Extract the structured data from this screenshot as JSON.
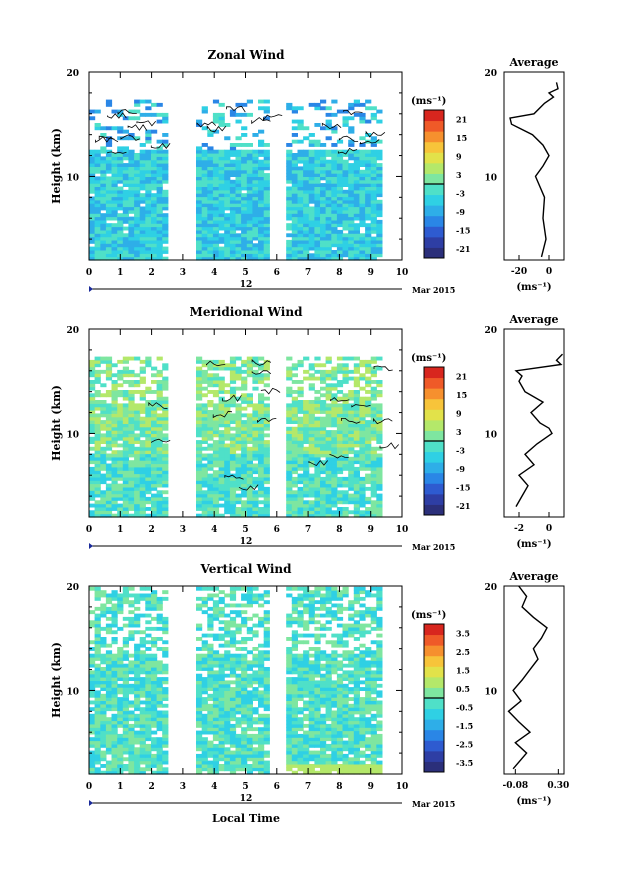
{
  "panels": [
    {
      "title": "Zonal Wind",
      "ylabel": "Height (km)",
      "y_ticks": [
        "20",
        "10"
      ],
      "x_ticks": [
        "0",
        "1",
        "2",
        "3",
        "4",
        "5",
        "6",
        "7",
        "8",
        "9",
        "10"
      ],
      "date_day": "12",
      "date_label": "Mar 2015",
      "unit": "(ms⁻¹)",
      "colorbar_ticks": [
        "21",
        "15",
        "9",
        "3",
        "-3",
        "-9",
        "-15",
        "-21"
      ],
      "avg_title": "Average",
      "avg_x_ticks": [
        "-20",
        "0"
      ],
      "avg_unit": "(ms⁻¹)"
    },
    {
      "title": "Meridional Wind",
      "ylabel": "Height (km)",
      "y_ticks": [
        "20",
        "10"
      ],
      "x_ticks": [
        "0",
        "1",
        "2",
        "3",
        "4",
        "5",
        "6",
        "7",
        "8",
        "9",
        "10"
      ],
      "date_day": "12",
      "date_label": "Mar 2015",
      "unit": "(ms⁻¹)",
      "colorbar_ticks": [
        "21",
        "15",
        "9",
        "3",
        "-3",
        "-9",
        "-15",
        "-21"
      ],
      "avg_title": "Average",
      "avg_x_ticks": [
        "-2",
        "0"
      ],
      "avg_unit": "(ms⁻¹)"
    },
    {
      "title": "Vertical Wind",
      "ylabel": "Height (km)",
      "y_ticks": [
        "20",
        "10"
      ],
      "x_ticks": [
        "0",
        "1",
        "2",
        "3",
        "4",
        "5",
        "6",
        "7",
        "8",
        "9",
        "10"
      ],
      "date_day": "12",
      "date_label": "Mar 2015",
      "unit": "(ms⁻¹)",
      "colorbar_ticks": [
        "3.5",
        "2.5",
        "1.5",
        "0.5",
        "-0.5",
        "-1.5",
        "-2.5",
        "-3.5"
      ],
      "avg_title": "Average",
      "avg_x_ticks": [
        "-0.08",
        "0.30"
      ],
      "avg_unit": "(ms⁻¹)"
    }
  ],
  "xlabel": "Local Time",
  "chart_data": [
    {
      "type": "heatmap",
      "title": "Zonal Wind",
      "xlabel": "Local Time",
      "ylabel": "Height (km)",
      "xlim": [
        0,
        10
      ],
      "ylim": [
        2,
        20
      ],
      "colorbar": {
        "unit": "(ms⁻¹)",
        "range": [
          -24,
          24
        ],
        "ticks": [
          21,
          15,
          9,
          3,
          -3,
          -9,
          -15,
          -21
        ]
      },
      "data_gaps": [
        [
          2.5,
          3.3
        ],
        [
          5.6,
          6.2
        ]
      ],
      "data_extent_hours": [
        0,
        9.3
      ],
      "average_profile": {
        "title": "Average",
        "xlim": [
          -30,
          10
        ],
        "x_ticks": [
          -20,
          0
        ],
        "height": [
          2.3,
          4,
          6,
          8,
          10,
          11,
          12,
          13,
          14,
          15,
          15.6,
          16,
          17,
          17.6,
          18,
          18.4,
          19
        ],
        "value": [
          -5,
          -2,
          -4,
          -3,
          -9,
          -4,
          0,
          -4,
          -11,
          -25,
          -26,
          -10,
          -3,
          3,
          0,
          6,
          5
        ]
      }
    },
    {
      "type": "heatmap",
      "title": "Meridional Wind",
      "xlabel": "Local Time",
      "ylabel": "Height (km)",
      "xlim": [
        0,
        10
      ],
      "ylim": [
        2,
        20
      ],
      "colorbar": {
        "unit": "(ms⁻¹)",
        "range": [
          -24,
          24
        ],
        "ticks": [
          21,
          15,
          9,
          3,
          -3,
          -9,
          -15,
          -21
        ]
      },
      "data_gaps": [
        [
          2.5,
          3.3
        ],
        [
          5.6,
          6.2
        ]
      ],
      "data_extent_hours": [
        0,
        9.3
      ],
      "average_profile": {
        "title": "Average",
        "xlim": [
          -3,
          1
        ],
        "x_ticks": [
          -2,
          0
        ],
        "height": [
          3,
          4,
          5,
          6,
          7,
          8,
          9,
          10,
          10.5,
          11,
          12,
          13,
          14,
          15,
          15.5,
          16,
          16.6,
          17,
          17.6
        ],
        "value": [
          -2.2,
          -1.8,
          -1.4,
          -2.0,
          -1.0,
          -1.6,
          -0.8,
          0.2,
          0.0,
          -0.6,
          -1.2,
          -0.4,
          -1.6,
          -2.0,
          -1.8,
          -2.2,
          0.8,
          0.5,
          0.9
        ]
      }
    },
    {
      "type": "heatmap",
      "title": "Vertical Wind",
      "xlabel": "Local Time",
      "ylabel": "Height (km)",
      "xlim": [
        0,
        10
      ],
      "ylim": [
        2,
        20
      ],
      "colorbar": {
        "unit": "(ms⁻¹)",
        "range": [
          -4,
          4
        ],
        "ticks": [
          3.5,
          2.5,
          1.5,
          0.5,
          -0.5,
          -1.5,
          -2.5,
          -3.5
        ]
      },
      "data_gaps": [
        [
          2.5,
          3.3
        ],
        [
          5.6,
          6.2
        ]
      ],
      "data_extent_hours": [
        0,
        9.3
      ],
      "average_profile": {
        "title": "Average",
        "xlim": [
          -0.18,
          0.35
        ],
        "x_ticks": [
          -0.08,
          0.3
        ],
        "height": [
          2.5,
          4,
          5,
          6,
          7,
          8,
          9,
          10,
          11,
          12,
          13,
          14,
          15,
          16,
          17,
          18,
          19,
          20
        ],
        "value": [
          -0.1,
          0.02,
          -0.08,
          0.05,
          -0.05,
          -0.14,
          -0.03,
          -0.1,
          -0.02,
          0.05,
          0.12,
          0.08,
          0.15,
          0.2,
          0.08,
          -0.02,
          0.02,
          -0.05
        ]
      }
    }
  ]
}
